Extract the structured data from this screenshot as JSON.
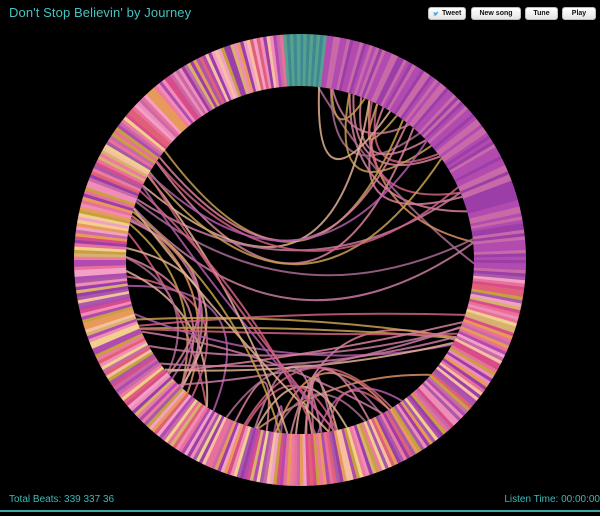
{
  "header": {
    "title": "Don't Stop Believin' by Journey",
    "tweet_label": "Tweet",
    "new_song_label": "New song",
    "tune_label": "Tune",
    "play_label": "Play"
  },
  "footer": {
    "total_beats_label": "Total Beats: 339 337 36",
    "listen_time_label": "Listen Time: 00:00:00"
  },
  "colors": {
    "accent": "#47c2c0",
    "background": "#000000",
    "palette": [
      "#e8709a",
      "#f08cb8",
      "#d94c8a",
      "#f2a0c8",
      "#c86aa8",
      "#b24bb0",
      "#9c3ea8",
      "#e89a5a",
      "#f0d08c",
      "#c8a040",
      "#e06078",
      "#f6c0a0",
      "#d8b070",
      "#a85aa8",
      "#ee7aa0",
      "#3a8a90",
      "#5aa090",
      "#f4e0b0"
    ]
  },
  "visualization": {
    "icon": "infinite-jukebox-beat-circle",
    "note": ""
  }
}
